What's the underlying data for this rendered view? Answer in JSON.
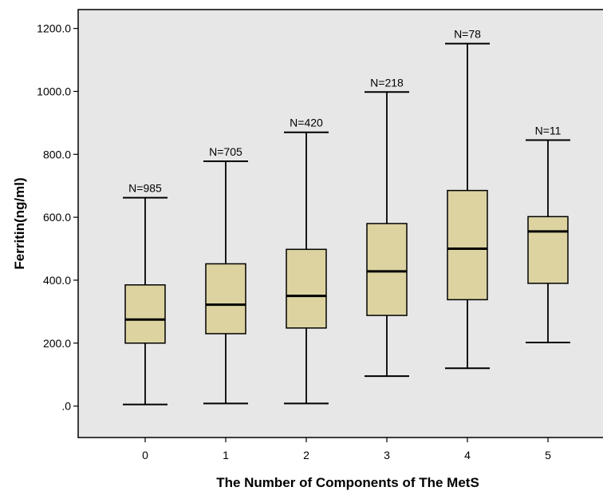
{
  "chart_data": {
    "type": "boxplot",
    "xlabel": "The Number of Components of The MetS",
    "ylabel": "Ferritin(ng/ml)",
    "ylim": [
      -100,
      1260
    ],
    "y_ticks": [
      {
        "value": 0,
        "label": ".0"
      },
      {
        "value": 200,
        "label": "200.0"
      },
      {
        "value": 400,
        "label": "400.0"
      },
      {
        "value": 600,
        "label": "600.0"
      },
      {
        "value": 800,
        "label": "800.0"
      },
      {
        "value": 1000,
        "label": "1000.0"
      },
      {
        "value": 1200,
        "label": "1200.0"
      }
    ],
    "grid": false,
    "colors": {
      "plot_background": "#e7e7e7",
      "box_fill": "#dcd3a1",
      "box_stroke": "#000000"
    },
    "categories": [
      "0",
      "1",
      "2",
      "3",
      "4",
      "5"
    ],
    "boxes": [
      {
        "category": "0",
        "n_label": "N=985",
        "min": 5,
        "q1": 200,
        "median": 275,
        "q3": 385,
        "max": 662
      },
      {
        "category": "1",
        "n_label": "N=705",
        "min": 8,
        "q1": 230,
        "median": 322,
        "q3": 452,
        "max": 778
      },
      {
        "category": "2",
        "n_label": "N=420",
        "min": 8,
        "q1": 248,
        "median": 350,
        "q3": 498,
        "max": 870
      },
      {
        "category": "3",
        "n_label": "N=218",
        "min": 95,
        "q1": 288,
        "median": 428,
        "q3": 580,
        "max": 998
      },
      {
        "category": "4",
        "n_label": "N=78",
        "min": 120,
        "q1": 338,
        "median": 500,
        "q3": 685,
        "max": 1152
      },
      {
        "category": "5",
        "n_label": "N=11",
        "min": 202,
        "q1": 390,
        "median": 555,
        "q3": 602,
        "max": 845
      }
    ]
  }
}
